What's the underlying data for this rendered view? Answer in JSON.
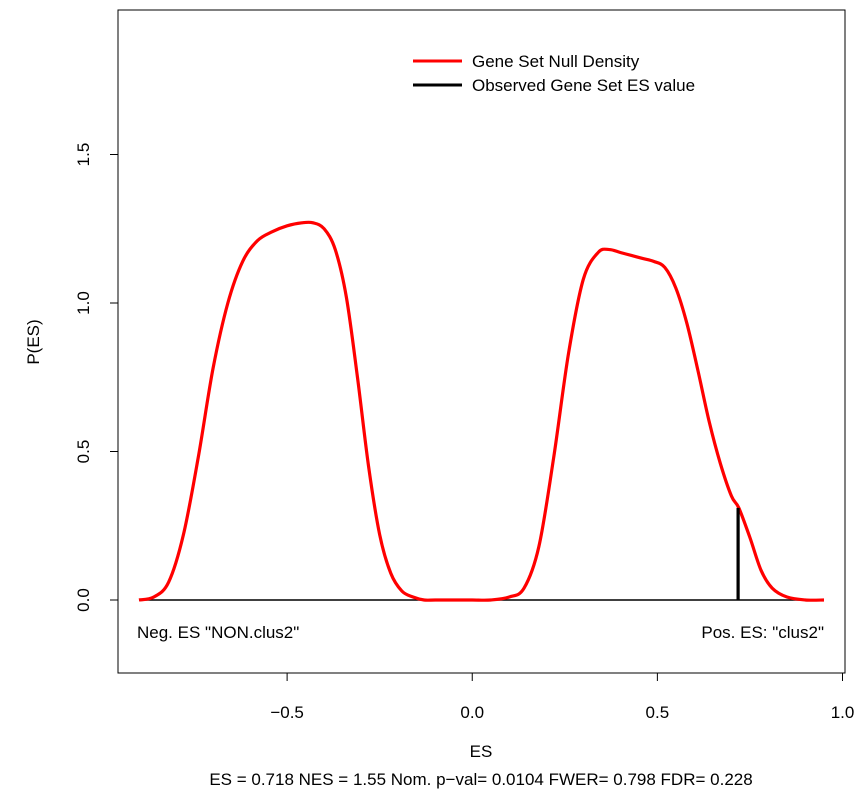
{
  "chart_data": {
    "type": "line",
    "title": "",
    "xlabel": "ES",
    "ylabel": "P(ES)",
    "subtitle": "ES = 0.718  NES = 1.55 Nom. p−val= 0.0104 FWER= 0.798 FDR= 0.228",
    "xlim": [
      -0.9,
      0.95
    ],
    "ylim": [
      0,
      1.85
    ],
    "x_ticks": [
      -0.5,
      0.0,
      0.5,
      1.0
    ],
    "x_tick_labels": [
      "−0.5",
      "0.0",
      "0.5",
      "1.0"
    ],
    "y_ticks": [
      0.0,
      0.5,
      1.0,
      1.5
    ],
    "y_tick_labels": [
      "0.0",
      "0.5",
      "1.0",
      "1.5"
    ],
    "grid": false,
    "legend_position": "top-right",
    "series": [
      {
        "name": "Gene Set Null Density",
        "color": "#ff0000",
        "x": [
          -0.9,
          -0.86,
          -0.82,
          -0.78,
          -0.74,
          -0.7,
          -0.66,
          -0.62,
          -0.58,
          -0.54,
          -0.5,
          -0.46,
          -0.43,
          -0.4,
          -0.37,
          -0.34,
          -0.31,
          -0.28,
          -0.25,
          -0.22,
          -0.19,
          -0.16,
          -0.13,
          -0.1,
          -0.05,
          0.0,
          0.05,
          0.1,
          0.14,
          0.18,
          0.22,
          0.26,
          0.3,
          0.34,
          0.37,
          0.4,
          0.43,
          0.46,
          0.49,
          0.52,
          0.55,
          0.58,
          0.61,
          0.64,
          0.67,
          0.7,
          0.72,
          0.75,
          0.78,
          0.81,
          0.85,
          0.9,
          0.95
        ],
        "y": [
          0.0,
          0.01,
          0.06,
          0.22,
          0.48,
          0.78,
          1.0,
          1.14,
          1.21,
          1.24,
          1.26,
          1.27,
          1.27,
          1.25,
          1.18,
          1.02,
          0.75,
          0.45,
          0.22,
          0.09,
          0.03,
          0.01,
          0.0,
          0.0,
          0.0,
          0.0,
          0.0,
          0.01,
          0.04,
          0.18,
          0.48,
          0.83,
          1.08,
          1.17,
          1.18,
          1.17,
          1.16,
          1.15,
          1.14,
          1.12,
          1.05,
          0.93,
          0.77,
          0.6,
          0.46,
          0.35,
          0.31,
          0.21,
          0.1,
          0.04,
          0.01,
          0.0,
          0.0
        ]
      },
      {
        "name": "Observed Gene Set ES value",
        "color": "#000000",
        "x": [
          0.718,
          0.718
        ],
        "y": [
          0.0,
          0.31
        ]
      }
    ],
    "baseline_y": 0,
    "annotations": {
      "neg": "Neg. ES \"NON.clus2\"",
      "pos": "Pos. ES: \"clus2\""
    }
  }
}
